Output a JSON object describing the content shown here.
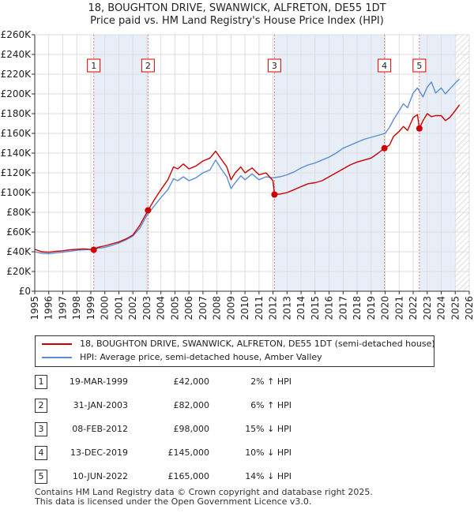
{
  "title_line1": "18, BOUGHTON DRIVE, SWANWICK, ALFRETON, DE55 1DT",
  "title_line2": "Price paid vs. HM Land Registry's House Price Index (HPI)",
  "chart_data": {
    "type": "line",
    "xlim": [
      1995,
      2026
    ],
    "ylim": [
      0,
      260000
    ],
    "y_ticks": [
      {
        "value": 0,
        "label": "£0"
      },
      {
        "value": 20000,
        "label": "£20K"
      },
      {
        "value": 40000,
        "label": "£40K"
      },
      {
        "value": 60000,
        "label": "£60K"
      },
      {
        "value": 80000,
        "label": "£80K"
      },
      {
        "value": 100000,
        "label": "£100K"
      },
      {
        "value": 120000,
        "label": "£120K"
      },
      {
        "value": 140000,
        "label": "£140K"
      },
      {
        "value": 160000,
        "label": "£160K"
      },
      {
        "value": 180000,
        "label": "£180K"
      },
      {
        "value": 200000,
        "label": "£200K"
      },
      {
        "value": 220000,
        "label": "£220K"
      },
      {
        "value": 240000,
        "label": "£240K"
      },
      {
        "value": 260000,
        "label": "£260K"
      }
    ],
    "x_ticks": [
      "1995",
      "1996",
      "1997",
      "1998",
      "1999",
      "2000",
      "2001",
      "2002",
      "2003",
      "2004",
      "2005",
      "2006",
      "2007",
      "2008",
      "2009",
      "2010",
      "2011",
      "2012",
      "2013",
      "2014",
      "2015",
      "2016",
      "2017",
      "2018",
      "2019",
      "2020",
      "2021",
      "2022",
      "2023",
      "2024",
      "2025",
      "2026"
    ],
    "series": [
      {
        "name": "18, BOUGHTON DRIVE, SWANWICK, ALFRETON, DE55 1DT (semi-detached house)",
        "color": "#cc0000",
        "x": [
          1995.0,
          1995.5,
          1996.0,
          1996.5,
          1997.0,
          1997.5,
          1998.0,
          1998.5,
          1999.21,
          1999.5,
          2000.0,
          2000.5,
          2001.0,
          2001.5,
          2002.0,
          2002.5,
          2003.08,
          2003.5,
          2004.0,
          2004.5,
          2004.9,
          2005.2,
          2005.6,
          2006.0,
          2006.5,
          2007.0,
          2007.5,
          2007.9,
          2008.3,
          2008.7,
          2009.0,
          2009.3,
          2009.7,
          2010.0,
          2010.5,
          2011.0,
          2011.5,
          2012.0,
          2012.1,
          2012.5,
          2013.0,
          2013.5,
          2014.0,
          2014.5,
          2015.0,
          2015.5,
          2016.0,
          2016.5,
          2017.0,
          2017.5,
          2018.0,
          2018.5,
          2019.0,
          2019.5,
          2019.95,
          2020.3,
          2020.6,
          2021.0,
          2021.3,
          2021.6,
          2022.0,
          2022.3,
          2022.44,
          2022.7,
          2023.0,
          2023.3,
          2023.6,
          2024.0,
          2024.3,
          2024.6,
          2025.0,
          2025.3
        ],
        "y": [
          42500,
          40000,
          39500,
          40500,
          41000,
          42000,
          42500,
          43000,
          42000,
          44500,
          46000,
          48000,
          50000,
          53000,
          57000,
          67000,
          82000,
          92000,
          103000,
          113000,
          126000,
          124000,
          129000,
          124000,
          127000,
          132000,
          135000,
          142000,
          134000,
          126000,
          113000,
          120000,
          126000,
          120000,
          125000,
          118000,
          120000,
          112000,
          98000,
          98500,
          100000,
          103000,
          106000,
          109000,
          110000,
          112000,
          116000,
          120000,
          124000,
          128000,
          131000,
          133000,
          135000,
          140000,
          145000,
          148000,
          157000,
          162000,
          167000,
          163000,
          176000,
          179000,
          165000,
          173000,
          180000,
          177000,
          178000,
          178000,
          173000,
          176000,
          183000,
          189000
        ]
      },
      {
        "name": "HPI: Average price, semi-detached house, Amber Valley",
        "color": "#5b8dd6",
        "x": [
          1995.0,
          1995.5,
          1996.0,
          1996.5,
          1997.0,
          1997.5,
          1998.0,
          1998.5,
          1999.0,
          1999.5,
          2000.0,
          2000.5,
          2001.0,
          2001.5,
          2002.0,
          2002.5,
          2003.0,
          2003.5,
          2004.0,
          2004.5,
          2004.9,
          2005.2,
          2005.6,
          2006.0,
          2006.5,
          2007.0,
          2007.5,
          2007.9,
          2008.3,
          2008.7,
          2009.0,
          2009.3,
          2009.7,
          2010.0,
          2010.5,
          2011.0,
          2011.5,
          2012.0,
          2012.5,
          2013.0,
          2013.5,
          2014.0,
          2014.5,
          2015.0,
          2015.5,
          2016.0,
          2016.5,
          2017.0,
          2017.5,
          2018.0,
          2018.5,
          2019.0,
          2019.5,
          2020.0,
          2020.3,
          2020.6,
          2021.0,
          2021.3,
          2021.6,
          2022.0,
          2022.3,
          2022.7,
          2023.0,
          2023.3,
          2023.6,
          2024.0,
          2024.3,
          2024.6,
          2025.0,
          2025.3
        ],
        "y": [
          40000,
          38500,
          38000,
          39000,
          39500,
          40500,
          41500,
          42000,
          42500,
          43500,
          44500,
          46500,
          49000,
          52000,
          56000,
          64000,
          77000,
          86000,
          95000,
          103000,
          114000,
          112000,
          116000,
          112000,
          115000,
          120000,
          123000,
          133000,
          124000,
          116000,
          104000,
          110000,
          117000,
          113000,
          119000,
          113000,
          116000,
          115000,
          116000,
          118000,
          121000,
          125000,
          128000,
          130000,
          133000,
          136000,
          140000,
          145000,
          148000,
          151000,
          154000,
          156000,
          158000,
          160000,
          166000,
          174000,
          183000,
          190000,
          186000,
          201000,
          206000,
          197000,
          207000,
          212000,
          201000,
          206000,
          200000,
          205000,
          211000,
          215000
        ]
      }
    ],
    "sales": [
      {
        "label": "1",
        "x": 1999.21,
        "y": 42000
      },
      {
        "label": "2",
        "x": 2003.08,
        "y": 82000
      },
      {
        "label": "3",
        "x": 2012.1,
        "y": 98000
      },
      {
        "label": "4",
        "x": 2019.95,
        "y": 145000
      },
      {
        "label": "5",
        "x": 2022.44,
        "y": 165000
      }
    ],
    "forecast_start": 2025.0
  },
  "legend": {
    "property": "18, BOUGHTON DRIVE, SWANWICK, ALFRETON, DE55 1DT (semi-detached house)",
    "hpi": "HPI: Average price, semi-detached house, Amber Valley"
  },
  "transactions": [
    {
      "num": "1",
      "date": "19-MAR-1999",
      "price": "£42,000",
      "hpi": "2% ↑ HPI"
    },
    {
      "num": "2",
      "date": "31-JAN-2003",
      "price": "£82,000",
      "hpi": "6% ↑ HPI"
    },
    {
      "num": "3",
      "date": "08-FEB-2012",
      "price": "£98,000",
      "hpi": "15% ↓ HPI"
    },
    {
      "num": "4",
      "date": "13-DEC-2019",
      "price": "£145,000",
      "hpi": "10% ↓ HPI"
    },
    {
      "num": "5",
      "date": "10-JUN-2022",
      "price": "£165,000",
      "hpi": "14% ↓ HPI"
    }
  ],
  "footer": {
    "line1": "Contains HM Land Registry data © Crown copyright and database right 2025.",
    "line2": "This data is licensed under the Open Government Licence v3.0."
  },
  "colors": {
    "property": "#cc0000",
    "hpi": "#5b8dd6",
    "band": "#e8eef8",
    "marker_line": "#e08080"
  }
}
